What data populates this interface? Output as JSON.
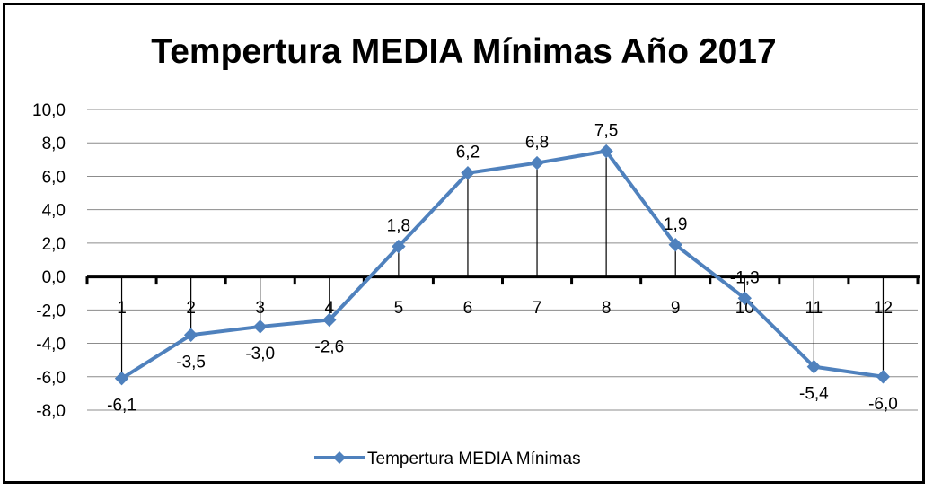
{
  "chart_data": {
    "type": "line",
    "title": "Tempertura MEDIA Mínimas Año 2017",
    "categories": [
      "1",
      "2",
      "3",
      "4",
      "5",
      "6",
      "7",
      "8",
      "9",
      "10",
      "11",
      "12"
    ],
    "series": [
      {
        "name": "Tempertura MEDIA Mínimas",
        "values": [
          -6.1,
          -3.5,
          -3.0,
          -2.6,
          1.8,
          6.2,
          6.8,
          7.5,
          1.9,
          -1.3,
          -5.4,
          -6.0
        ],
        "labels": [
          "-6,1",
          "-3,5",
          "-3,0",
          "-2,6",
          "1,8",
          "6,2",
          "6,8",
          "7,5",
          "1,9",
          "-1,3",
          "-5,4",
          "-6,0"
        ],
        "color": "#4F81BD"
      }
    ],
    "ylim": [
      -8,
      10
    ],
    "yticks": [
      10,
      8,
      6,
      4,
      2,
      0,
      -2,
      -4,
      -6,
      -8
    ],
    "ytick_labels": [
      "10,0",
      "8,0",
      "6,0",
      "4,0",
      "2,0",
      "0,0",
      "-2,0",
      "-4,0",
      "-6,0",
      "-8,0"
    ],
    "grid": true,
    "drop_lines": true,
    "legend_position": "bottom",
    "xlabel": "",
    "ylabel": ""
  }
}
